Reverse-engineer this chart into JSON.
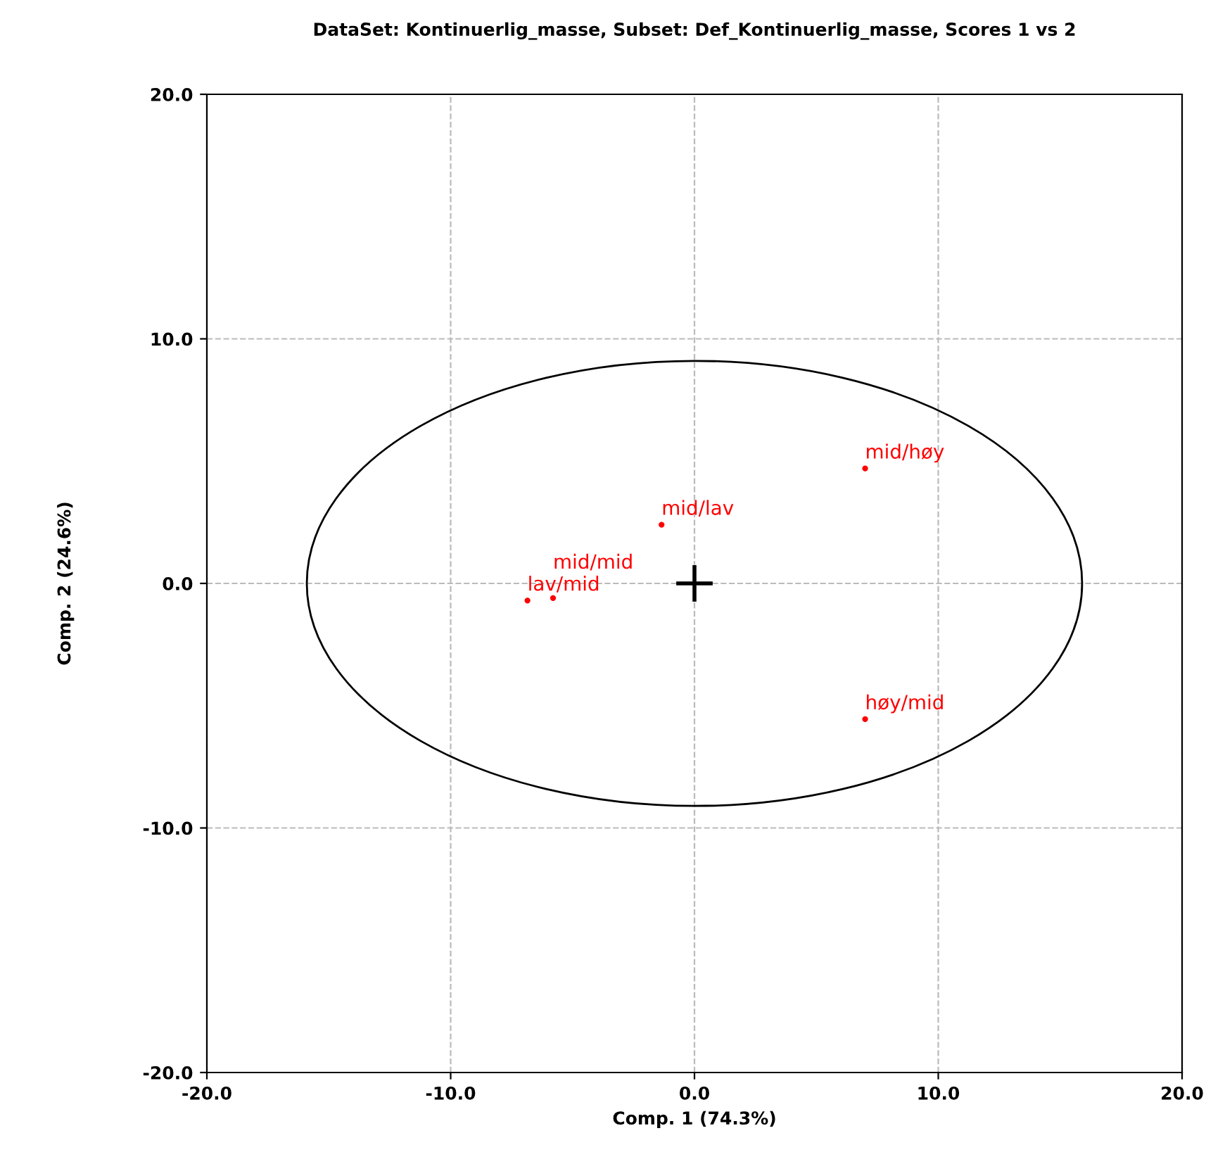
{
  "chart_data": {
    "type": "scatter",
    "title": "DataSet: Kontinuerlig_masse, Subset: Def_Kontinuerlig_masse, Scores 1 vs 2",
    "xlabel": "Comp. 1 (74.3%)",
    "ylabel": "Comp. 2 (24.6%)",
    "xlim": [
      -20,
      20
    ],
    "ylim": [
      -20,
      20
    ],
    "xticks": [
      {
        "value": -20,
        "label": "-20.0"
      },
      {
        "value": -10,
        "label": "-10.0"
      },
      {
        "value": 0,
        "label": "0.0"
      },
      {
        "value": 10,
        "label": "10.0"
      },
      {
        "value": 20,
        "label": "20.0"
      }
    ],
    "yticks": [
      {
        "value": -20,
        "label": "-20.0"
      },
      {
        "value": -10,
        "label": "-10.0"
      },
      {
        "value": 0,
        "label": "0.0"
      },
      {
        "value": 10,
        "label": "10.0"
      },
      {
        "value": 20,
        "label": "20.0"
      }
    ],
    "grid": true,
    "series": [
      {
        "color": "#ff0000",
        "marker": "circle",
        "x": [
          7.0,
          7.0,
          -1.35,
          -6.85,
          -5.8
        ],
        "values": [
          4.7,
          -5.55,
          2.4,
          -0.7,
          -0.6
        ],
        "value_labels": [
          "mid/høy",
          "høy/mid",
          "mid/lav",
          "lav/mid",
          "mid/mid"
        ]
      }
    ]
  }
}
